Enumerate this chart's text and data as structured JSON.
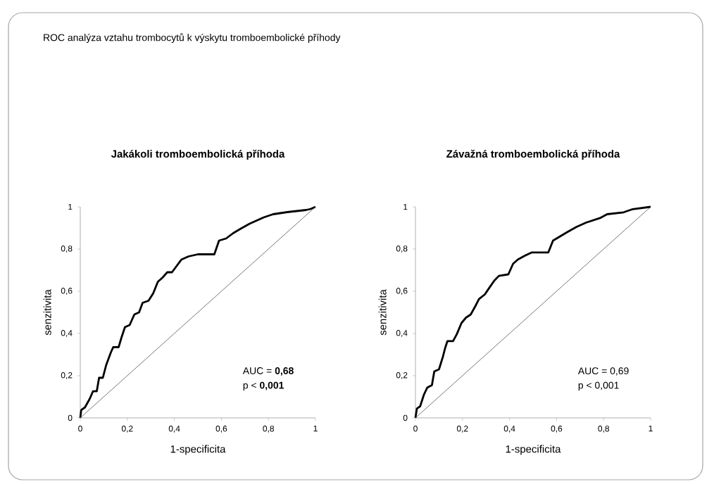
{
  "chart_data": [
    {
      "type": "other",
      "title": "ROC analýza vztahu trombocytů k výskytu tromboembolické příhody"
    },
    {
      "type": "line",
      "title": "Jakákoli tromboembolická příhoda",
      "xlabel": "1-specificita",
      "ylabel": "senzitivita",
      "xlim": [
        0,
        1
      ],
      "ylim": [
        0,
        1
      ],
      "xticks": [
        0,
        {
          "value": 0.2,
          "label": "0,2"
        },
        {
          "value": 0.4,
          "label": "0,4"
        },
        {
          "value": 0.6,
          "label": "0,6"
        },
        {
          "value": 0.8,
          "label": "0,8"
        },
        1
      ],
      "yticks": [
        0,
        {
          "value": 0.2,
          "label": "0,2"
        },
        {
          "value": 0.4,
          "label": "0,4"
        },
        {
          "value": 0.6,
          "label": "0,6"
        },
        {
          "value": 0.8,
          "label": "0,8"
        },
        1
      ],
      "annotations": [
        "AUC = **0,68**",
        "p < **0,001**"
      ],
      "series": [
        {
          "type": "line",
          "color": "#000000",
          "x": [
            0,
            0.004,
            0.02,
            0.04,
            0.054,
            0.07,
            0.08,
            0.096,
            0.11,
            0.13,
            0.14,
            0.163,
            0.175,
            0.19,
            0.21,
            0.23,
            0.25,
            0.265,
            0.29,
            0.31,
            0.33,
            0.35,
            0.37,
            0.39,
            0.41,
            0.43,
            0.46,
            0.5,
            0.57,
            0.59,
            0.62,
            0.65,
            0.68,
            0.72,
            0.78,
            0.82,
            0.88,
            0.96,
            0.98,
            1
          ],
          "values": [
            0,
            0.037,
            0.05,
            0.09,
            0.126,
            0.126,
            0.19,
            0.19,
            0.25,
            0.31,
            0.335,
            0.335,
            0.38,
            0.43,
            0.44,
            0.49,
            0.5,
            0.545,
            0.555,
            0.59,
            0.645,
            0.665,
            0.69,
            0.69,
            0.72,
            0.75,
            0.765,
            0.775,
            0.775,
            0.84,
            0.85,
            0.875,
            0.895,
            0.92,
            0.95,
            0.965,
            0.975,
            0.985,
            0.99,
            1
          ]
        },
        {
          "type": "line",
          "color": "#555555",
          "x": [
            0,
            1
          ],
          "values": [
            0,
            1
          ]
        }
      ]
    },
    {
      "type": "line",
      "title": "Závažná tromboembolická příhoda",
      "xlabel": "1-specificita",
      "ylabel": "senzitivita",
      "xlim": [
        0,
        1
      ],
      "ylim": [
        0,
        1
      ],
      "xticks": [
        0,
        {
          "value": 0.2,
          "label": "0,2"
        },
        {
          "value": 0.4,
          "label": "0,4"
        },
        {
          "value": 0.6,
          "label": "0,6"
        },
        {
          "value": 0.8,
          "label": "0,8"
        },
        1
      ],
      "yticks": [
        0,
        {
          "value": 0.2,
          "label": "0,2"
        },
        {
          "value": 0.4,
          "label": "0,4"
        },
        {
          "value": 0.6,
          "label": "0,6"
        },
        {
          "value": 0.8,
          "label": "0,8"
        },
        1
      ],
      "annotations": [
        "AUC = 0,69",
        "p < 0,001"
      ],
      "series": [
        {
          "type": "line",
          "color": "#000000",
          "x": [
            0,
            0.006,
            0.02,
            0.036,
            0.05,
            0.07,
            0.08,
            0.1,
            0.116,
            0.126,
            0.136,
            0.16,
            0.176,
            0.196,
            0.215,
            0.235,
            0.255,
            0.27,
            0.295,
            0.315,
            0.335,
            0.355,
            0.395,
            0.415,
            0.435,
            0.465,
            0.495,
            0.565,
            0.585,
            0.615,
            0.645,
            0.685,
            0.725,
            0.785,
            0.815,
            0.885,
            0.924,
            1
          ],
          "values": [
            0,
            0.044,
            0.055,
            0.11,
            0.143,
            0.155,
            0.22,
            0.23,
            0.287,
            0.33,
            0.364,
            0.364,
            0.397,
            0.45,
            0.475,
            0.49,
            0.53,
            0.563,
            0.585,
            0.618,
            0.65,
            0.673,
            0.68,
            0.73,
            0.75,
            0.768,
            0.784,
            0.784,
            0.84,
            0.86,
            0.88,
            0.905,
            0.925,
            0.947,
            0.965,
            0.974,
            0.989,
            1
          ]
        },
        {
          "type": "line",
          "color": "#555555",
          "x": [
            0,
            1
          ],
          "values": [
            0,
            1
          ]
        }
      ]
    }
  ]
}
